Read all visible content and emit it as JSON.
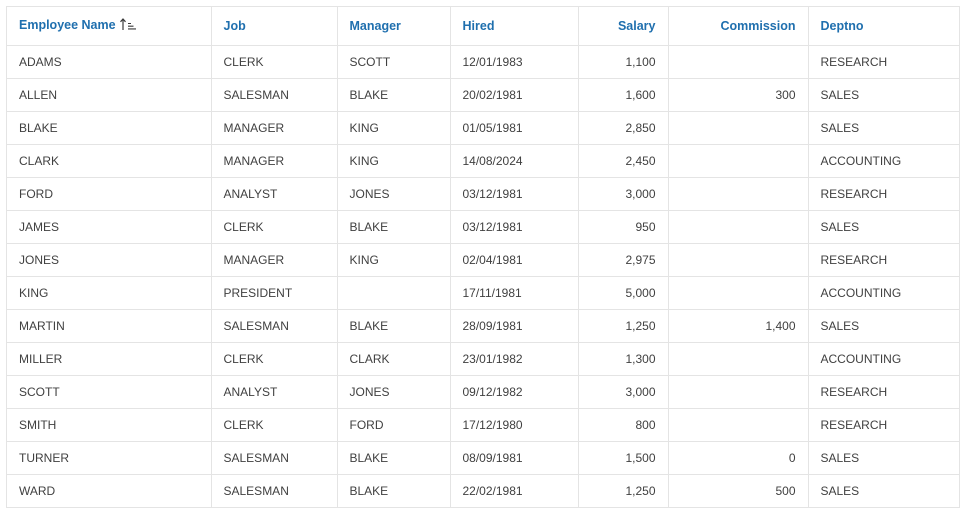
{
  "grid": {
    "columns": [
      {
        "key": "ename",
        "label": "Employee Name",
        "align": "left",
        "sorted": "asc"
      },
      {
        "key": "job",
        "label": "Job",
        "align": "left"
      },
      {
        "key": "mgr",
        "label": "Manager",
        "align": "left"
      },
      {
        "key": "hired",
        "label": "Hired",
        "align": "left"
      },
      {
        "key": "sal",
        "label": "Salary",
        "align": "right"
      },
      {
        "key": "comm",
        "label": "Commission",
        "align": "right"
      },
      {
        "key": "deptno",
        "label": "Deptno",
        "align": "left"
      }
    ],
    "rows": [
      {
        "ename": "ADAMS",
        "job": "CLERK",
        "mgr": "SCOTT",
        "hired": "12/01/1983",
        "sal": "1,100",
        "comm": "",
        "deptno": "RESEARCH"
      },
      {
        "ename": "ALLEN",
        "job": "SALESMAN",
        "mgr": "BLAKE",
        "hired": "20/02/1981",
        "sal": "1,600",
        "comm": "300",
        "deptno": "SALES"
      },
      {
        "ename": "BLAKE",
        "job": "MANAGER",
        "mgr": "KING",
        "hired": "01/05/1981",
        "sal": "2,850",
        "comm": "",
        "deptno": "SALES"
      },
      {
        "ename": "CLARK",
        "job": "MANAGER",
        "mgr": "KING",
        "hired": "14/08/2024",
        "sal": "2,450",
        "comm": "",
        "deptno": "ACCOUNTING"
      },
      {
        "ename": "FORD",
        "job": "ANALYST",
        "mgr": "JONES",
        "hired": "03/12/1981",
        "sal": "3,000",
        "comm": "",
        "deptno": "RESEARCH"
      },
      {
        "ename": "JAMES",
        "job": "CLERK",
        "mgr": "BLAKE",
        "hired": "03/12/1981",
        "sal": "950",
        "comm": "",
        "deptno": "SALES"
      },
      {
        "ename": "JONES",
        "job": "MANAGER",
        "mgr": "KING",
        "hired": "02/04/1981",
        "sal": "2,975",
        "comm": "",
        "deptno": "RESEARCH"
      },
      {
        "ename": "KING",
        "job": "PRESIDENT",
        "mgr": "",
        "hired": "17/11/1981",
        "sal": "5,000",
        "comm": "",
        "deptno": "ACCOUNTING"
      },
      {
        "ename": "MARTIN",
        "job": "SALESMAN",
        "mgr": "BLAKE",
        "hired": "28/09/1981",
        "sal": "1,250",
        "comm": "1,400",
        "deptno": "SALES"
      },
      {
        "ename": "MILLER",
        "job": "CLERK",
        "mgr": "CLARK",
        "hired": "23/01/1982",
        "sal": "1,300",
        "comm": "",
        "deptno": "ACCOUNTING"
      },
      {
        "ename": "SCOTT",
        "job": "ANALYST",
        "mgr": "JONES",
        "hired": "09/12/1982",
        "sal": "3,000",
        "comm": "",
        "deptno": "RESEARCH"
      },
      {
        "ename": "SMITH",
        "job": "CLERK",
        "mgr": "FORD",
        "hired": "17/12/1980",
        "sal": "800",
        "comm": "",
        "deptno": "RESEARCH"
      },
      {
        "ename": "TURNER",
        "job": "SALESMAN",
        "mgr": "BLAKE",
        "hired": "08/09/1981",
        "sal": "1,500",
        "comm": "0",
        "deptno": "SALES"
      },
      {
        "ename": "WARD",
        "job": "SALESMAN",
        "mgr": "BLAKE",
        "hired": "22/02/1981",
        "sal": "1,250",
        "comm": "500",
        "deptno": "SALES"
      }
    ]
  },
  "icons": {
    "sort_ascending": "sort-ascending-icon"
  },
  "colors": {
    "header_text": "#1f6fae",
    "grid_line": "#e4e4e4",
    "cell_text": "#404040"
  }
}
